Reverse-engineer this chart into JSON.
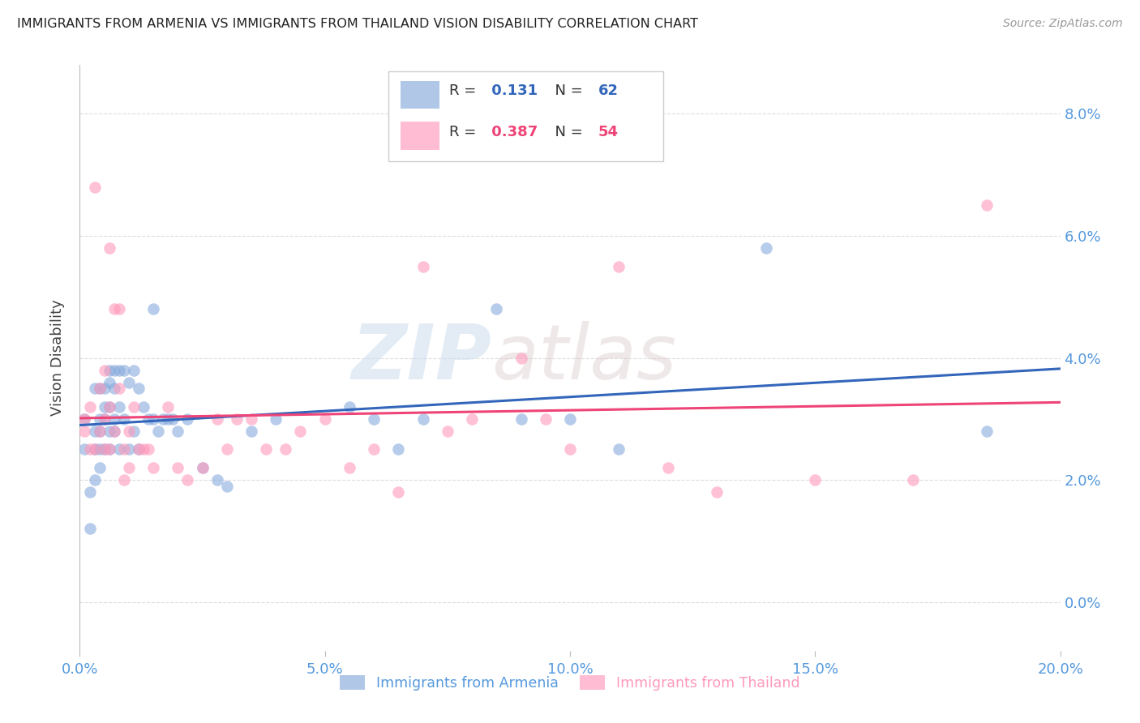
{
  "title": "IMMIGRANTS FROM ARMENIA VS IMMIGRANTS FROM THAILAND VISION DISABILITY CORRELATION CHART",
  "source": "Source: ZipAtlas.com",
  "ylabel": "Vision Disability",
  "legend_label_armenia": "Immigrants from Armenia",
  "legend_label_thailand": "Immigrants from Thailand",
  "color_armenia": "#88AADD",
  "color_thailand": "#FF99BB",
  "color_armenia_line": "#3366BB",
  "color_thailand_line": "#EE4477",
  "R_armenia": 0.131,
  "N_armenia": 62,
  "R_thailand": 0.387,
  "N_thailand": 54,
  "xlim": [
    0.0,
    0.2
  ],
  "ylim": [
    -0.008,
    0.088
  ],
  "yticks": [
    0.0,
    0.02,
    0.04,
    0.06,
    0.08
  ],
  "xticks": [
    0.0,
    0.05,
    0.1,
    0.15,
    0.2
  ],
  "armenia_x": [
    0.001,
    0.001,
    0.002,
    0.002,
    0.003,
    0.003,
    0.003,
    0.003,
    0.004,
    0.004,
    0.004,
    0.004,
    0.004,
    0.005,
    0.005,
    0.005,
    0.005,
    0.006,
    0.006,
    0.006,
    0.006,
    0.006,
    0.007,
    0.007,
    0.007,
    0.007,
    0.008,
    0.008,
    0.008,
    0.009,
    0.009,
    0.01,
    0.01,
    0.011,
    0.011,
    0.012,
    0.012,
    0.013,
    0.014,
    0.015,
    0.015,
    0.016,
    0.017,
    0.018,
    0.019,
    0.02,
    0.022,
    0.025,
    0.028,
    0.03,
    0.035,
    0.04,
    0.055,
    0.06,
    0.065,
    0.07,
    0.085,
    0.09,
    0.1,
    0.11,
    0.14,
    0.185
  ],
  "armenia_y": [
    0.03,
    0.025,
    0.018,
    0.012,
    0.035,
    0.028,
    0.025,
    0.02,
    0.035,
    0.03,
    0.028,
    0.025,
    0.022,
    0.035,
    0.032,
    0.03,
    0.025,
    0.038,
    0.036,
    0.032,
    0.028,
    0.025,
    0.038,
    0.035,
    0.03,
    0.028,
    0.038,
    0.032,
    0.025,
    0.038,
    0.03,
    0.036,
    0.025,
    0.038,
    0.028,
    0.035,
    0.025,
    0.032,
    0.03,
    0.048,
    0.03,
    0.028,
    0.03,
    0.03,
    0.03,
    0.028,
    0.03,
    0.022,
    0.02,
    0.019,
    0.028,
    0.03,
    0.032,
    0.03,
    0.025,
    0.03,
    0.048,
    0.03,
    0.03,
    0.025,
    0.058,
    0.028
  ],
  "thailand_x": [
    0.001,
    0.001,
    0.002,
    0.002,
    0.003,
    0.003,
    0.004,
    0.004,
    0.005,
    0.005,
    0.005,
    0.006,
    0.006,
    0.006,
    0.007,
    0.007,
    0.008,
    0.008,
    0.009,
    0.009,
    0.01,
    0.01,
    0.011,
    0.012,
    0.013,
    0.014,
    0.015,
    0.018,
    0.02,
    0.022,
    0.025,
    0.028,
    0.03,
    0.032,
    0.035,
    0.038,
    0.042,
    0.045,
    0.05,
    0.055,
    0.06,
    0.065,
    0.07,
    0.075,
    0.08,
    0.09,
    0.095,
    0.1,
    0.11,
    0.12,
    0.13,
    0.15,
    0.17,
    0.185
  ],
  "thailand_y": [
    0.03,
    0.028,
    0.032,
    0.025,
    0.068,
    0.025,
    0.035,
    0.028,
    0.038,
    0.03,
    0.025,
    0.058,
    0.032,
    0.025,
    0.048,
    0.028,
    0.035,
    0.048,
    0.025,
    0.02,
    0.028,
    0.022,
    0.032,
    0.025,
    0.025,
    0.025,
    0.022,
    0.032,
    0.022,
    0.02,
    0.022,
    0.03,
    0.025,
    0.03,
    0.03,
    0.025,
    0.025,
    0.028,
    0.03,
    0.022,
    0.025,
    0.018,
    0.055,
    0.028,
    0.03,
    0.04,
    0.03,
    0.025,
    0.055,
    0.022,
    0.018,
    0.02,
    0.02,
    0.065
  ],
  "watermark_zip": "ZIP",
  "watermark_atlas": "atlas",
  "background_color": "#FFFFFF",
  "grid_color": "#DDDDDD",
  "title_color": "#222222",
  "axis_label_color": "#444444",
  "tick_label_color": "#5599DD",
  "source_color": "#999999"
}
